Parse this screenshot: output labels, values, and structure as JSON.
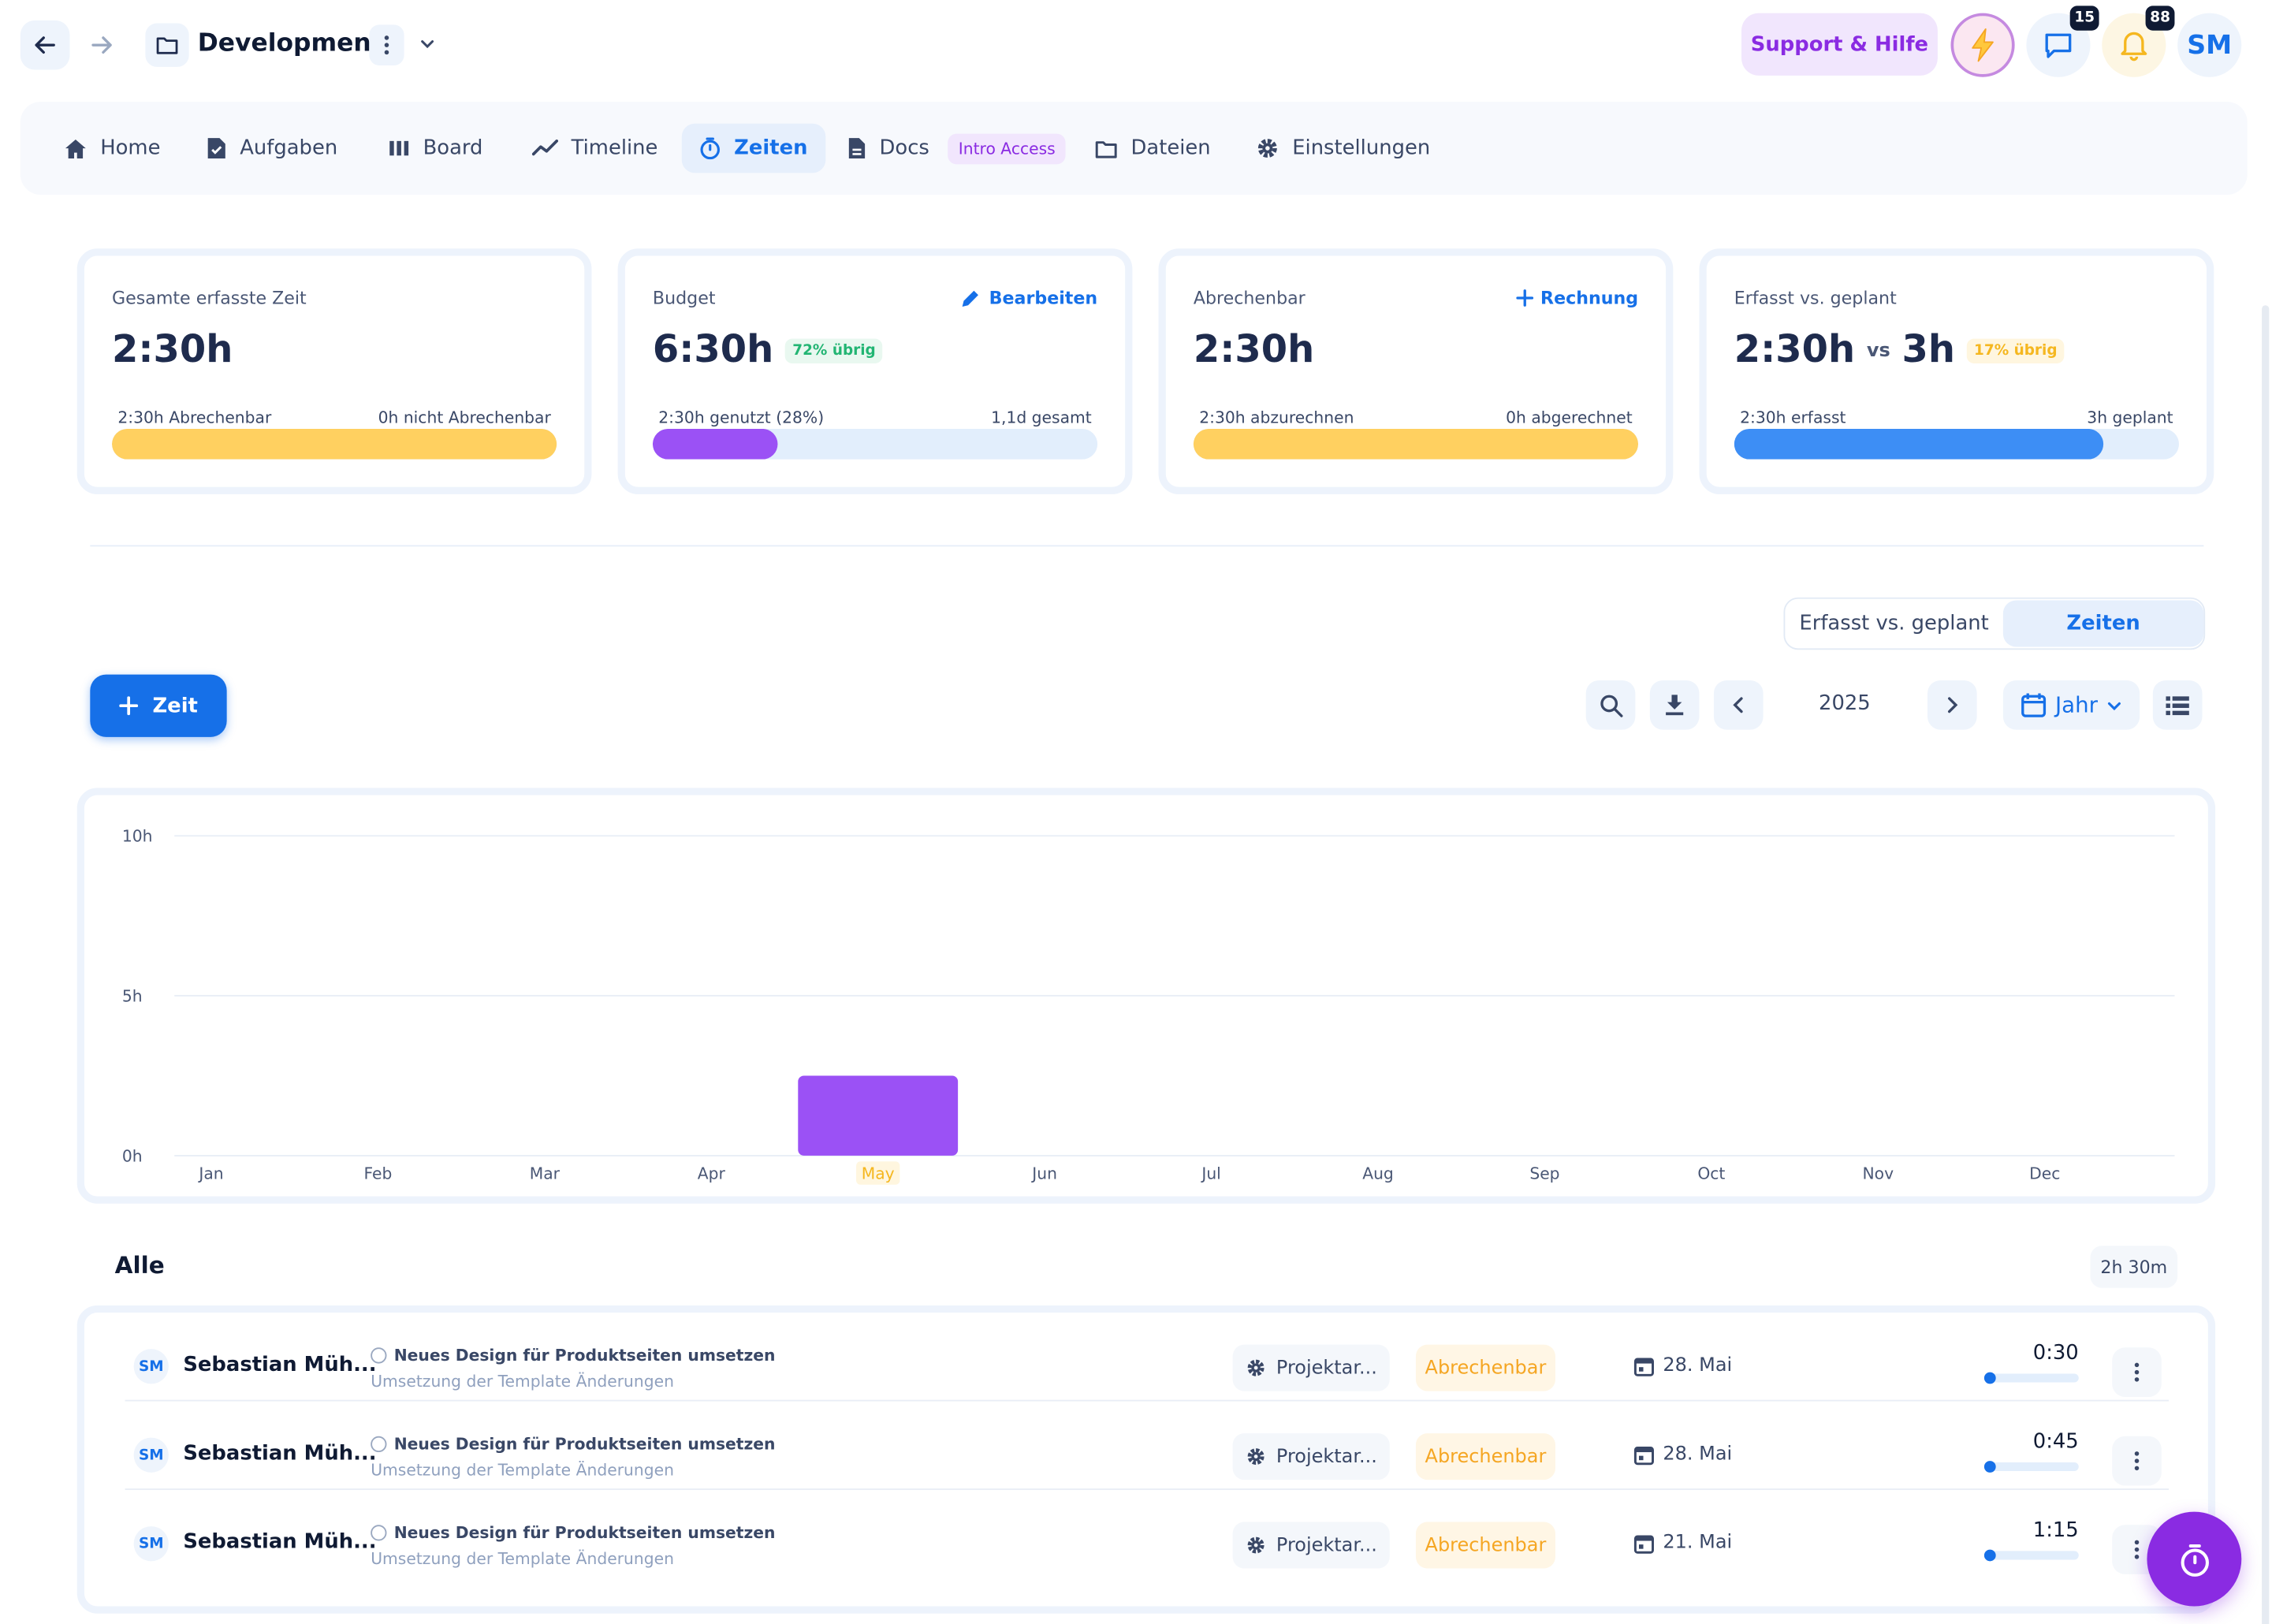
{
  "header": {
    "project_title": "Development",
    "support_label": "Support & Hilfe",
    "chat_badge": "15",
    "notification_badge": "88",
    "user_initials": "SM"
  },
  "tabs": [
    {
      "label": "Home",
      "icon": "home-icon"
    },
    {
      "label": "Aufgaben",
      "icon": "task-icon"
    },
    {
      "label": "Board",
      "icon": "board-icon"
    },
    {
      "label": "Timeline",
      "icon": "timeline-icon"
    },
    {
      "label": "Zeiten",
      "icon": "stopwatch-icon",
      "active": true
    },
    {
      "label": "Docs",
      "icon": "document-icon",
      "badge": "Intro Access"
    },
    {
      "label": "Dateien",
      "icon": "folder-icon"
    },
    {
      "label": "Einstellungen",
      "icon": "gear-icon"
    }
  ],
  "cards": {
    "total": {
      "label": "Gesamte erfasste Zeit",
      "value": "2:30h",
      "left": "2:30h Abrechenbar",
      "right": "0h nicht Abrechenbar",
      "fill": 1.0,
      "color": "#ffd060"
    },
    "budget": {
      "label": "Budget",
      "action": "Bearbeiten",
      "value": "6:30h",
      "badge": "72% übrig",
      "left": "2:30h genutzt (28%)",
      "right": "1,1d gesamt",
      "fill": 0.28,
      "color": "#9b51f5"
    },
    "billable": {
      "label": "Abrechenbar",
      "action": "Rechnung",
      "value": "2:30h",
      "left": "2:30h abzurechnen",
      "right": "0h abgerechnet",
      "fill": 1.0,
      "color": "#ffd060"
    },
    "planned": {
      "label": "Erfasst vs. geplant",
      "value": "2:30h",
      "vs": "vs",
      "value2": "3h",
      "badge": "17% übrig",
      "left": "2:30h erfasst",
      "right": "3h geplant",
      "fill": 0.83,
      "color": "#3d8ef5"
    }
  },
  "view_toggle": {
    "option_a": "Erfasst vs. geplant",
    "option_b": "Zeiten"
  },
  "toolbar": {
    "add_label": "Zeit",
    "year": "2025",
    "period": "Jahr"
  },
  "chart_data": {
    "type": "bar",
    "categories": [
      "Jan",
      "Feb",
      "Mar",
      "Apr",
      "May",
      "Jun",
      "Jul",
      "Aug",
      "Sep",
      "Oct",
      "Nov",
      "Dec"
    ],
    "values": [
      0,
      0,
      0,
      0,
      2.5,
      0,
      0,
      0,
      0,
      0,
      0,
      0
    ],
    "y_ticks": [
      "0h",
      "5h",
      "10h"
    ],
    "ylim": [
      0,
      10
    ],
    "highlight_category": "May",
    "bar_color": "#9b51f5",
    "grid": true,
    "legend": "none"
  },
  "list": {
    "title": "Alle",
    "total": "2h 30m",
    "rows": [
      {
        "initials": "SM",
        "name": "Sebastian Müh...",
        "task": "Neues Design für Produktseiten umsetzen",
        "desc": "Umsetzung der Template Änderungen",
        "category": "Projektar...",
        "billing": "Abrechenbar",
        "date": "28. Mai",
        "duration": "0:30"
      },
      {
        "initials": "SM",
        "name": "Sebastian Müh...",
        "task": "Neues Design für Produktseiten umsetzen",
        "desc": "Umsetzung der Template Änderungen",
        "category": "Projektar...",
        "billing": "Abrechenbar",
        "date": "28. Mai",
        "duration": "0:45"
      },
      {
        "initials": "SM",
        "name": "Sebastian Müh...",
        "task": "Neues Design für Produktseiten umsetzen",
        "desc": "Umsetzung der Template Änderungen",
        "category": "Projektar...",
        "billing": "Abrechenbar",
        "date": "21. Mai",
        "duration": "1:15"
      }
    ]
  }
}
